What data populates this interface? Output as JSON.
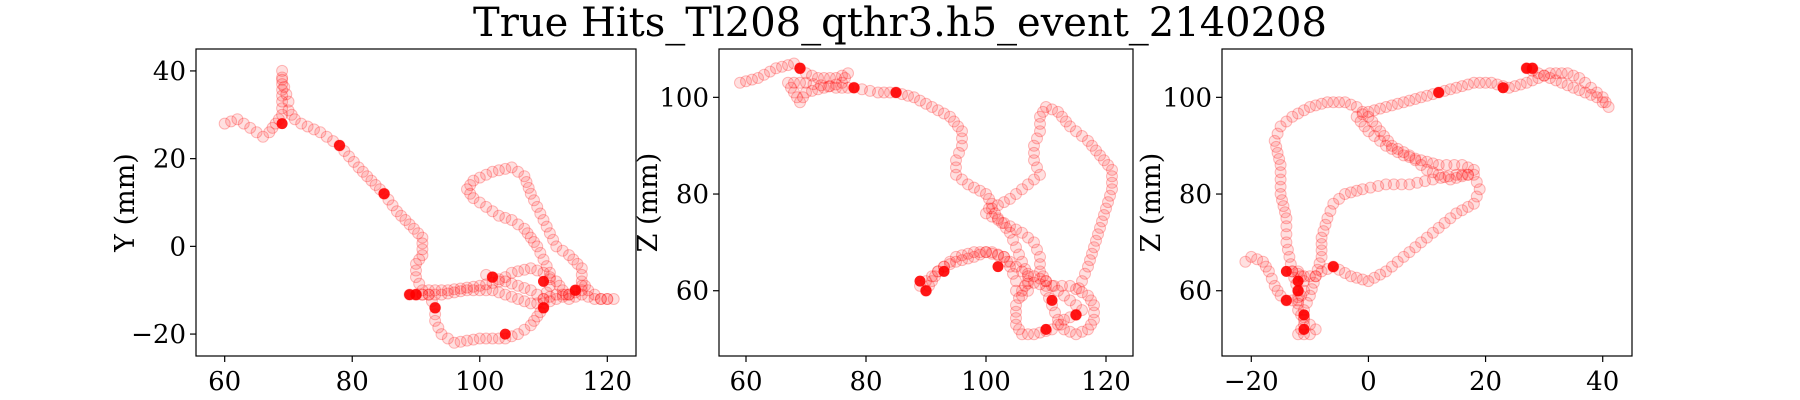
{
  "title": "True Hits_Tl208_qthr3.h5_event_2140208",
  "colors": {
    "point": "#ff0000",
    "axes": "#000000"
  },
  "chart_data": [
    {
      "type": "scatter",
      "ylabel": "Y (mm)",
      "xlim": [
        55.5,
        124.5
      ],
      "ylim": [
        -25,
        45
      ],
      "xticks": [
        60,
        80,
        100,
        120
      ],
      "yticks": [
        -20,
        0,
        20,
        40
      ],
      "yticklabels": [
        "−20",
        "0",
        "20",
        "40"
      ],
      "track": [
        [
          60,
          28
        ],
        [
          62,
          29
        ],
        [
          64,
          27
        ],
        [
          66,
          25
        ],
        [
          67,
          26
        ],
        [
          68,
          28
        ],
        [
          69,
          30
        ],
        [
          69,
          33
        ],
        [
          69,
          37
        ],
        [
          69,
          40
        ],
        [
          69,
          38
        ],
        [
          70,
          33
        ],
        [
          70,
          31
        ],
        [
          71,
          29
        ],
        [
          72,
          28
        ],
        [
          75,
          26
        ],
        [
          78,
          23
        ],
        [
          81,
          18
        ],
        [
          83,
          15
        ],
        [
          85,
          12
        ],
        [
          87,
          8
        ],
        [
          89,
          5
        ],
        [
          91,
          2
        ],
        [
          91,
          -2
        ],
        [
          90,
          -4
        ],
        [
          90,
          -7
        ],
        [
          91,
          -10
        ],
        [
          95,
          -10
        ],
        [
          100,
          -9
        ],
        [
          103,
          -8
        ],
        [
          105,
          -6
        ],
        [
          108,
          -5
        ],
        [
          110,
          -6
        ],
        [
          112,
          -8
        ],
        [
          113,
          -10
        ],
        [
          114,
          -12
        ],
        [
          116,
          -11
        ],
        [
          118,
          -12
        ],
        [
          120,
          -12
        ],
        [
          121,
          -12
        ],
        [
          119,
          -12
        ],
        [
          117,
          -10
        ],
        [
          116,
          -8
        ],
        [
          116,
          -5
        ],
        [
          114,
          -2
        ],
        [
          112,
          0
        ],
        [
          111,
          3
        ],
        [
          110,
          6
        ],
        [
          109,
          9
        ],
        [
          108,
          12
        ],
        [
          107,
          16
        ],
        [
          105,
          18
        ],
        [
          102,
          17
        ],
        [
          99,
          15
        ],
        [
          98,
          13
        ],
        [
          99,
          11
        ],
        [
          101,
          9
        ],
        [
          103,
          7
        ],
        [
          105,
          6
        ],
        [
          107,
          4
        ],
        [
          108,
          2
        ],
        [
          109,
          0
        ],
        [
          110,
          -3
        ],
        [
          111,
          -6
        ],
        [
          111,
          -9
        ],
        [
          110,
          -12
        ],
        [
          110,
          -14
        ],
        [
          109,
          -16
        ],
        [
          108,
          -18
        ],
        [
          106,
          -20
        ],
        [
          104,
          -21
        ],
        [
          100,
          -21
        ],
        [
          96,
          -22
        ],
        [
          94,
          -20
        ],
        [
          93,
          -17
        ],
        [
          93,
          -14
        ],
        [
          92,
          -11
        ],
        [
          90,
          -11
        ],
        [
          89,
          -11
        ],
        [
          90,
          -11
        ],
        [
          94,
          -11
        ],
        [
          98,
          -10
        ],
        [
          102,
          -10
        ],
        [
          104,
          -11
        ],
        [
          106,
          -12
        ],
        [
          108,
          -13
        ],
        [
          110,
          -13
        ],
        [
          112,
          -12
        ],
        [
          114,
          -11
        ],
        [
          115,
          -10
        ],
        [
          116,
          -9
        ],
        [
          116,
          -10
        ],
        [
          114,
          -11
        ],
        [
          112,
          -11
        ],
        [
          110,
          -12
        ],
        [
          108,
          -10
        ],
        [
          106,
          -9
        ],
        [
          104,
          -8
        ],
        [
          102,
          -7
        ],
        [
          100,
          -6
        ]
      ],
      "bright": [
        [
          69,
          28
        ],
        [
          78,
          23
        ],
        [
          85,
          12
        ],
        [
          89,
          -11
        ],
        [
          90,
          -11
        ],
        [
          93,
          -14
        ],
        [
          102,
          -7
        ],
        [
          104,
          -20
        ],
        [
          110,
          -8
        ],
        [
          110,
          -14
        ],
        [
          115,
          -10
        ]
      ]
    },
    {
      "type": "scatter",
      "ylabel": "Z (mm)",
      "xlim": [
        55.5,
        124.5
      ],
      "ylim": [
        46.5,
        110
      ],
      "xticks": [
        60,
        80,
        100,
        120
      ],
      "yticks": [
        60,
        80,
        100
      ],
      "yticklabels": [
        "60",
        "80",
        "100"
      ],
      "track": [
        [
          59,
          103
        ],
        [
          62,
          104
        ],
        [
          65,
          106
        ],
        [
          68,
          107
        ],
        [
          69,
          106
        ],
        [
          70,
          105
        ],
        [
          72,
          104
        ],
        [
          75,
          104
        ],
        [
          77,
          105
        ],
        [
          76,
          103
        ],
        [
          73,
          102
        ],
        [
          70,
          101
        ],
        [
          69,
          99
        ],
        [
          68,
          101
        ],
        [
          67,
          103
        ],
        [
          70,
          103
        ],
        [
          75,
          102
        ],
        [
          78,
          102
        ],
        [
          82,
          101
        ],
        [
          85,
          101
        ],
        [
          88,
          100
        ],
        [
          91,
          98
        ],
        [
          94,
          96
        ],
        [
          96,
          93
        ],
        [
          96,
          90
        ],
        [
          95,
          87
        ],
        [
          95,
          84
        ],
        [
          97,
          82
        ],
        [
          100,
          80
        ],
        [
          101,
          78
        ],
        [
          100,
          76
        ],
        [
          103,
          74
        ],
        [
          106,
          72
        ],
        [
          108,
          70
        ],
        [
          109,
          67
        ],
        [
          109,
          64
        ],
        [
          110,
          62
        ],
        [
          110,
          60
        ],
        [
          111,
          57
        ],
        [
          112,
          54
        ],
        [
          113,
          52
        ],
        [
          115,
          51
        ],
        [
          117,
          52
        ],
        [
          118,
          54
        ],
        [
          118,
          57
        ],
        [
          117,
          59
        ],
        [
          114,
          61
        ],
        [
          110,
          61
        ],
        [
          107,
          62
        ],
        [
          106,
          60
        ],
        [
          105,
          57
        ],
        [
          105,
          53
        ],
        [
          106,
          51
        ],
        [
          108,
          51
        ],
        [
          111,
          52
        ],
        [
          113,
          54
        ],
        [
          115,
          55
        ],
        [
          116,
          56
        ],
        [
          114,
          58
        ],
        [
          112,
          60
        ],
        [
          110,
          62
        ],
        [
          108,
          63
        ],
        [
          106,
          64
        ],
        [
          104,
          66
        ],
        [
          103,
          67
        ],
        [
          100,
          68
        ],
        [
          98,
          67
        ],
        [
          95,
          66
        ],
        [
          93,
          65
        ],
        [
          92,
          64
        ],
        [
          91,
          63
        ],
        [
          90,
          62
        ],
        [
          89,
          61
        ],
        [
          90,
          60
        ],
        [
          91,
          62
        ],
        [
          92,
          64
        ],
        [
          93,
          65
        ],
        [
          95,
          67
        ],
        [
          98,
          68
        ],
        [
          101,
          68
        ],
        [
          103,
          67
        ],
        [
          104,
          65
        ],
        [
          105,
          62
        ],
        [
          105,
          60
        ],
        [
          106,
          59
        ],
        [
          107,
          60
        ],
        [
          107,
          63
        ],
        [
          106,
          66
        ],
        [
          105,
          69
        ],
        [
          104,
          72
        ],
        [
          102,
          75
        ],
        [
          101,
          77
        ],
        [
          104,
          79
        ],
        [
          107,
          82
        ],
        [
          109,
          84
        ],
        [
          108,
          87
        ],
        [
          108,
          90
        ],
        [
          109,
          93
        ],
        [
          109,
          96
        ],
        [
          110,
          98
        ],
        [
          112,
          97
        ],
        [
          114,
          94
        ],
        [
          117,
          91
        ],
        [
          119,
          88
        ],
        [
          121,
          85
        ],
        [
          121,
          81
        ],
        [
          120,
          77
        ],
        [
          119,
          73
        ],
        [
          118,
          69
        ],
        [
          117,
          65
        ],
        [
          116,
          62
        ],
        [
          115,
          59
        ]
      ],
      "bright": [
        [
          69,
          106
        ],
        [
          78,
          102
        ],
        [
          85,
          101
        ],
        [
          89,
          62
        ],
        [
          90,
          60
        ],
        [
          93,
          64
        ],
        [
          102,
          65
        ],
        [
          110,
          52
        ],
        [
          111,
          58
        ],
        [
          115,
          55
        ]
      ]
    },
    {
      "type": "scatter",
      "ylabel": "Z (mm)",
      "xlim": [
        -25,
        45
      ],
      "ylim": [
        46.5,
        110
      ],
      "xticks": [
        -20,
        0,
        20,
        40
      ],
      "yticks": [
        60,
        80,
        100
      ],
      "yticklabels": [
        "60",
        "80",
        "100"
      ],
      "track": [
        [
          -21,
          66
        ],
        [
          -20,
          67
        ],
        [
          -18,
          66
        ],
        [
          -17,
          64
        ],
        [
          -16,
          61
        ],
        [
          -15,
          59
        ],
        [
          -14,
          58
        ],
        [
          -12,
          58
        ],
        [
          -11,
          60
        ],
        [
          -11,
          62
        ],
        [
          -12,
          64
        ],
        [
          -13,
          64
        ],
        [
          -11,
          63
        ],
        [
          -9,
          63
        ],
        [
          -8,
          64
        ],
        [
          -6,
          65
        ],
        [
          -3,
          63
        ],
        [
          0,
          62
        ],
        [
          3,
          64
        ],
        [
          6,
          67
        ],
        [
          9,
          70
        ],
        [
          12,
          73
        ],
        [
          15,
          76
        ],
        [
          18,
          78
        ],
        [
          19,
          81
        ],
        [
          18,
          84
        ],
        [
          15,
          84
        ],
        [
          11,
          83
        ],
        [
          7,
          82
        ],
        [
          3,
          82
        ],
        [
          -1,
          81
        ],
        [
          -4,
          80
        ],
        [
          -6,
          78
        ],
        [
          -7,
          75
        ],
        [
          -8,
          71
        ],
        [
          -8,
          67
        ],
        [
          -9,
          63
        ],
        [
          -10,
          59
        ],
        [
          -11,
          56
        ],
        [
          -11,
          53
        ],
        [
          -12,
          51
        ],
        [
          -10,
          51
        ],
        [
          -9,
          52
        ],
        [
          -11,
          54
        ],
        [
          -12,
          56
        ],
        [
          -12,
          60
        ],
        [
          -13,
          64
        ],
        [
          -14,
          70
        ],
        [
          -14,
          75
        ],
        [
          -15,
          80
        ],
        [
          -15,
          86
        ],
        [
          -16,
          91
        ],
        [
          -15,
          94
        ],
        [
          -13,
          96
        ],
        [
          -10,
          98
        ],
        [
          -7,
          99
        ],
        [
          -4,
          99
        ],
        [
          -2,
          98
        ],
        [
          0,
          96
        ],
        [
          2,
          93
        ],
        [
          4,
          90
        ],
        [
          7,
          88
        ],
        [
          10,
          85
        ],
        [
          14,
          83
        ],
        [
          17,
          84
        ],
        [
          18,
          85
        ],
        [
          16,
          86
        ],
        [
          12,
          86
        ],
        [
          9,
          87
        ],
        [
          6,
          88
        ],
        [
          3,
          90
        ],
        [
          0,
          93
        ],
        [
          -2,
          96
        ],
        [
          0,
          97
        ],
        [
          3,
          98
        ],
        [
          6,
          99
        ],
        [
          9,
          100
        ],
        [
          12,
          101
        ],
        [
          15,
          102
        ],
        [
          18,
          103
        ],
        [
          21,
          103
        ],
        [
          24,
          102
        ],
        [
          27,
          103
        ],
        [
          29,
          104
        ],
        [
          31,
          105
        ],
        [
          34,
          105
        ],
        [
          36,
          104
        ],
        [
          38,
          102
        ],
        [
          39,
          101
        ],
        [
          40,
          100
        ],
        [
          41,
          98
        ],
        [
          39,
          100
        ],
        [
          37,
          101
        ],
        [
          35,
          102
        ],
        [
          33,
          103
        ],
        [
          31,
          104
        ],
        [
          29,
          105
        ],
        [
          27,
          106
        ],
        [
          28,
          106
        ],
        [
          29,
          105
        ]
      ],
      "bright": [
        [
          -14,
          64
        ],
        [
          -14,
          58
        ],
        [
          -12,
          62
        ],
        [
          -12,
          60
        ],
        [
          -11,
          55
        ],
        [
          -11,
          52
        ],
        [
          -6,
          65
        ],
        [
          12,
          101
        ],
        [
          23,
          102
        ],
        [
          27,
          106
        ],
        [
          28,
          106
        ]
      ]
    }
  ]
}
